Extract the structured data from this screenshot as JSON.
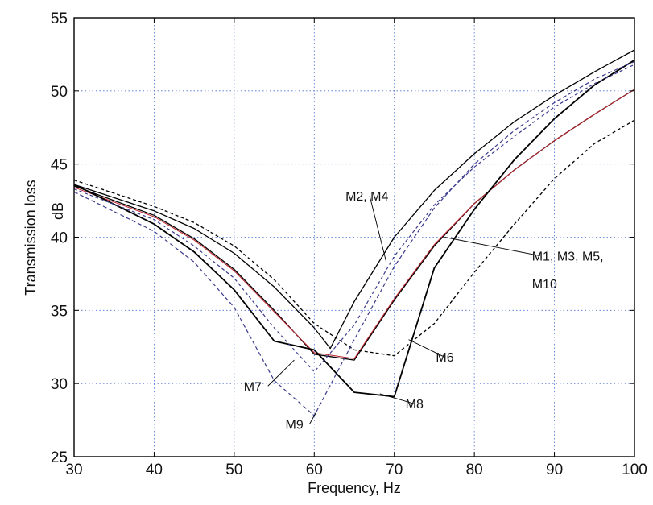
{
  "chart_data": {
    "type": "line",
    "xlabel": "Frequency,  Hz",
    "ylabel_parts": [
      "Transmission loss",
      "dB"
    ],
    "xlim": [
      30,
      100
    ],
    "ylim": [
      25,
      55
    ],
    "xticks": [
      30,
      40,
      50,
      60,
      70,
      80,
      90,
      100
    ],
    "yticks": [
      25,
      30,
      35,
      40,
      45,
      50,
      55
    ],
    "grid": true,
    "series": [
      {
        "name": "M2, M4",
        "color": "#000000",
        "dash": "solid",
        "width": 1.3,
        "x": [
          30,
          40,
          45,
          50,
          55,
          60,
          62,
          65,
          70,
          75,
          80,
          85,
          90,
          95,
          100
        ],
        "y": [
          43.6,
          41.8,
          40.6,
          38.9,
          36.6,
          33.8,
          32.4,
          35.6,
          40.0,
          43.2,
          45.7,
          47.9,
          49.7,
          51.3,
          52.8
        ]
      },
      {
        "name": "M1, M3, M5, M10",
        "color": "#000000",
        "dash": "solid",
        "width": 1.3,
        "x": [
          30,
          40,
          45,
          50,
          55,
          60,
          65,
          70,
          75,
          80,
          85,
          90,
          95,
          100
        ],
        "y": [
          43.5,
          41.5,
          39.9,
          37.8,
          35.0,
          32.0,
          31.6,
          35.7,
          39.4,
          42.3,
          44.6,
          46.6,
          48.4,
          50.1
        ]
      },
      {
        "name": "M1, M3, M5, M10 (red)",
        "color": "#c0202a",
        "dash": "solid",
        "width": 1.0,
        "x": [
          30,
          40,
          45,
          50,
          55,
          60,
          65,
          70,
          75,
          80,
          85,
          90,
          95,
          100
        ],
        "y": [
          43.4,
          41.4,
          39.8,
          37.7,
          34.9,
          32.1,
          31.7,
          35.8,
          39.5,
          42.3,
          44.6,
          46.6,
          48.4,
          50.1
        ]
      },
      {
        "name": "M6",
        "color": "#000000",
        "dash": "4 3",
        "width": 1.3,
        "x": [
          30,
          40,
          45,
          50,
          55,
          60,
          65,
          70,
          75,
          80,
          85,
          90,
          95,
          100
        ],
        "y": [
          43.9,
          42.1,
          41.0,
          39.4,
          37.1,
          34.1,
          32.3,
          31.9,
          34.1,
          37.6,
          40.9,
          44.0,
          46.4,
          48.0
        ]
      },
      {
        "name": "M8",
        "color": "#000000",
        "dash": "solid",
        "width": 1.8,
        "x": [
          30,
          40,
          45,
          50,
          55,
          60,
          65,
          70,
          75,
          80,
          85,
          90,
          95,
          100
        ],
        "y": [
          43.6,
          40.9,
          39.0,
          36.4,
          32.9,
          32.3,
          29.4,
          29.1,
          37.9,
          41.9,
          45.3,
          48.1,
          50.4,
          52.1
        ]
      },
      {
        "name": "M7",
        "color": "#3a3a8c",
        "dash": "4 3",
        "width": 1.2,
        "x": [
          30,
          40,
          45,
          50,
          55,
          60,
          65,
          70,
          75,
          80,
          85,
          90,
          95,
          100
        ],
        "y": [
          43.3,
          41.2,
          39.4,
          37.2,
          33.8,
          30.8,
          34.0,
          38.7,
          42.2,
          44.8,
          46.9,
          48.9,
          50.5,
          51.8
        ]
      },
      {
        "name": "M9",
        "color": "#3a3a8c",
        "dash": "5 3",
        "width": 1.2,
        "x": [
          30,
          40,
          45,
          50,
          55,
          60,
          65,
          70,
          75,
          80,
          85,
          90,
          95,
          100
        ],
        "y": [
          43.1,
          40.4,
          38.3,
          35.2,
          30.2,
          27.8,
          33.0,
          38.0,
          42.0,
          45.0,
          47.3,
          49.2,
          50.8,
          52.0
        ]
      }
    ],
    "annotations": [
      {
        "text": "M2, M4",
        "x": 63.9,
        "y": 42.5,
        "target_x": 69,
        "target_y": 38.3
      },
      {
        "text": "M1, M3, M5,",
        "x": 87.2,
        "y": 38.4,
        "target_x": 76.3,
        "target_y": 40.0
      },
      {
        "text": "M10",
        "x": 87.2,
        "y": 36.5,
        "target_x": null,
        "target_y": null
      },
      {
        "text": "M6",
        "x": 75.2,
        "y": 31.5,
        "target_x": 71.8,
        "target_y": 33.0
      },
      {
        "text": "M8",
        "x": 71.4,
        "y": 28.3,
        "target_x": 68.2,
        "target_y": 29.3
      },
      {
        "text": "M7",
        "x": 51.2,
        "y": 29.5,
        "target_x": 57.5,
        "target_y": 31.6
      },
      {
        "text": "M9",
        "x": 56.4,
        "y": 26.9,
        "target_x": 60.2,
        "target_y": 28.0
      }
    ]
  }
}
